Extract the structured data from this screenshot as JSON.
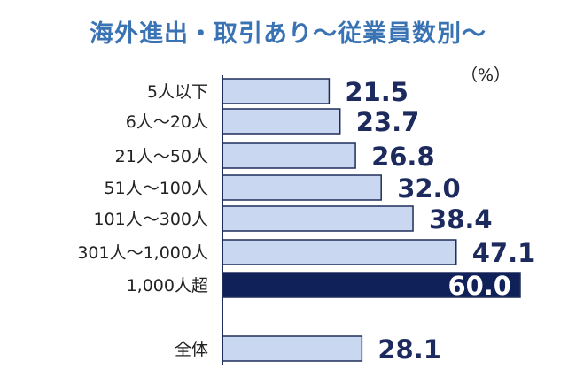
{
  "chart_data": {
    "type": "bar",
    "orientation": "horizontal",
    "title": "海外進出・取引あり～従業員数別～",
    "unit": "（%）",
    "categories": [
      "5人以下",
      "6人～20人",
      "21人～50人",
      "51人～100人",
      "101人～300人",
      "301人～1,000人",
      "1,000人超",
      "全体"
    ],
    "values": [
      21.5,
      23.7,
      26.8,
      32.0,
      38.4,
      47.1,
      60.0,
      28.1
    ],
    "value_labels": [
      "21.5",
      "23.7",
      "26.8",
      "32.0",
      "38.4",
      "47.1",
      "60.0",
      "28.1"
    ],
    "highlight_index": 6,
    "xlim": [
      0,
      60
    ],
    "grid": false,
    "colors": {
      "bar_fill": "#c9d8f0",
      "bar_stroke": "#1f2d5c",
      "highlight_fill": "#102058",
      "value_text": "#1c2a5e",
      "highlight_value_text": "#ffffff",
      "title": "#3a73b3"
    }
  }
}
